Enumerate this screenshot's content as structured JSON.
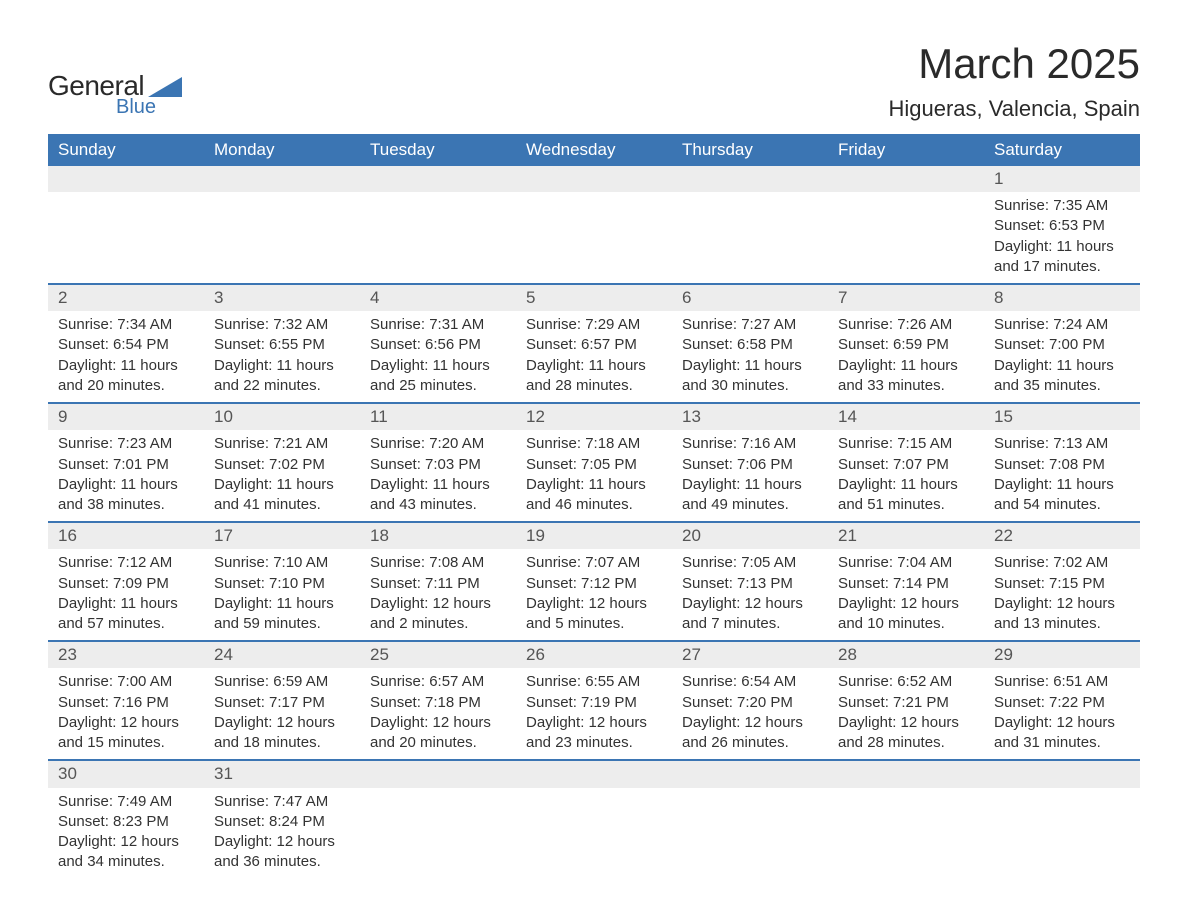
{
  "brand": {
    "name1": "General",
    "name2": "Blue",
    "logo_color": "#3b75b3",
    "text_color": "#2a2a2a"
  },
  "title": "March 2025",
  "location": "Higueras, Valencia, Spain",
  "colors": {
    "header_bg": "#3b75b3",
    "header_text": "#ffffff",
    "daynum_bg": "#ededed",
    "row_border": "#3b75b3",
    "body_text": "#333333",
    "page_bg": "#ffffff"
  },
  "typography": {
    "title_fontsize": 42,
    "location_fontsize": 22,
    "dayheader_fontsize": 17,
    "daynum_fontsize": 17,
    "cell_fontsize": 15,
    "font_family": "Arial, Helvetica, sans-serif"
  },
  "day_headers": [
    "Sunday",
    "Monday",
    "Tuesday",
    "Wednesday",
    "Thursday",
    "Friday",
    "Saturday"
  ],
  "weeks": [
    [
      {
        "day": "",
        "sunrise": "",
        "sunset": "",
        "daylight": ""
      },
      {
        "day": "",
        "sunrise": "",
        "sunset": "",
        "daylight": ""
      },
      {
        "day": "",
        "sunrise": "",
        "sunset": "",
        "daylight": ""
      },
      {
        "day": "",
        "sunrise": "",
        "sunset": "",
        "daylight": ""
      },
      {
        "day": "",
        "sunrise": "",
        "sunset": "",
        "daylight": ""
      },
      {
        "day": "",
        "sunrise": "",
        "sunset": "",
        "daylight": ""
      },
      {
        "day": "1",
        "sunrise": "Sunrise: 7:35 AM",
        "sunset": "Sunset: 6:53 PM",
        "daylight": "Daylight: 11 hours and 17 minutes."
      }
    ],
    [
      {
        "day": "2",
        "sunrise": "Sunrise: 7:34 AM",
        "sunset": "Sunset: 6:54 PM",
        "daylight": "Daylight: 11 hours and 20 minutes."
      },
      {
        "day": "3",
        "sunrise": "Sunrise: 7:32 AM",
        "sunset": "Sunset: 6:55 PM",
        "daylight": "Daylight: 11 hours and 22 minutes."
      },
      {
        "day": "4",
        "sunrise": "Sunrise: 7:31 AM",
        "sunset": "Sunset: 6:56 PM",
        "daylight": "Daylight: 11 hours and 25 minutes."
      },
      {
        "day": "5",
        "sunrise": "Sunrise: 7:29 AM",
        "sunset": "Sunset: 6:57 PM",
        "daylight": "Daylight: 11 hours and 28 minutes."
      },
      {
        "day": "6",
        "sunrise": "Sunrise: 7:27 AM",
        "sunset": "Sunset: 6:58 PM",
        "daylight": "Daylight: 11 hours and 30 minutes."
      },
      {
        "day": "7",
        "sunrise": "Sunrise: 7:26 AM",
        "sunset": "Sunset: 6:59 PM",
        "daylight": "Daylight: 11 hours and 33 minutes."
      },
      {
        "day": "8",
        "sunrise": "Sunrise: 7:24 AM",
        "sunset": "Sunset: 7:00 PM",
        "daylight": "Daylight: 11 hours and 35 minutes."
      }
    ],
    [
      {
        "day": "9",
        "sunrise": "Sunrise: 7:23 AM",
        "sunset": "Sunset: 7:01 PM",
        "daylight": "Daylight: 11 hours and 38 minutes."
      },
      {
        "day": "10",
        "sunrise": "Sunrise: 7:21 AM",
        "sunset": "Sunset: 7:02 PM",
        "daylight": "Daylight: 11 hours and 41 minutes."
      },
      {
        "day": "11",
        "sunrise": "Sunrise: 7:20 AM",
        "sunset": "Sunset: 7:03 PM",
        "daylight": "Daylight: 11 hours and 43 minutes."
      },
      {
        "day": "12",
        "sunrise": "Sunrise: 7:18 AM",
        "sunset": "Sunset: 7:05 PM",
        "daylight": "Daylight: 11 hours and 46 minutes."
      },
      {
        "day": "13",
        "sunrise": "Sunrise: 7:16 AM",
        "sunset": "Sunset: 7:06 PM",
        "daylight": "Daylight: 11 hours and 49 minutes."
      },
      {
        "day": "14",
        "sunrise": "Sunrise: 7:15 AM",
        "sunset": "Sunset: 7:07 PM",
        "daylight": "Daylight: 11 hours and 51 minutes."
      },
      {
        "day": "15",
        "sunrise": "Sunrise: 7:13 AM",
        "sunset": "Sunset: 7:08 PM",
        "daylight": "Daylight: 11 hours and 54 minutes."
      }
    ],
    [
      {
        "day": "16",
        "sunrise": "Sunrise: 7:12 AM",
        "sunset": "Sunset: 7:09 PM",
        "daylight": "Daylight: 11 hours and 57 minutes."
      },
      {
        "day": "17",
        "sunrise": "Sunrise: 7:10 AM",
        "sunset": "Sunset: 7:10 PM",
        "daylight": "Daylight: 11 hours and 59 minutes."
      },
      {
        "day": "18",
        "sunrise": "Sunrise: 7:08 AM",
        "sunset": "Sunset: 7:11 PM",
        "daylight": "Daylight: 12 hours and 2 minutes."
      },
      {
        "day": "19",
        "sunrise": "Sunrise: 7:07 AM",
        "sunset": "Sunset: 7:12 PM",
        "daylight": "Daylight: 12 hours and 5 minutes."
      },
      {
        "day": "20",
        "sunrise": "Sunrise: 7:05 AM",
        "sunset": "Sunset: 7:13 PM",
        "daylight": "Daylight: 12 hours and 7 minutes."
      },
      {
        "day": "21",
        "sunrise": "Sunrise: 7:04 AM",
        "sunset": "Sunset: 7:14 PM",
        "daylight": "Daylight: 12 hours and 10 minutes."
      },
      {
        "day": "22",
        "sunrise": "Sunrise: 7:02 AM",
        "sunset": "Sunset: 7:15 PM",
        "daylight": "Daylight: 12 hours and 13 minutes."
      }
    ],
    [
      {
        "day": "23",
        "sunrise": "Sunrise: 7:00 AM",
        "sunset": "Sunset: 7:16 PM",
        "daylight": "Daylight: 12 hours and 15 minutes."
      },
      {
        "day": "24",
        "sunrise": "Sunrise: 6:59 AM",
        "sunset": "Sunset: 7:17 PM",
        "daylight": "Daylight: 12 hours and 18 minutes."
      },
      {
        "day": "25",
        "sunrise": "Sunrise: 6:57 AM",
        "sunset": "Sunset: 7:18 PM",
        "daylight": "Daylight: 12 hours and 20 minutes."
      },
      {
        "day": "26",
        "sunrise": "Sunrise: 6:55 AM",
        "sunset": "Sunset: 7:19 PM",
        "daylight": "Daylight: 12 hours and 23 minutes."
      },
      {
        "day": "27",
        "sunrise": "Sunrise: 6:54 AM",
        "sunset": "Sunset: 7:20 PM",
        "daylight": "Daylight: 12 hours and 26 minutes."
      },
      {
        "day": "28",
        "sunrise": "Sunrise: 6:52 AM",
        "sunset": "Sunset: 7:21 PM",
        "daylight": "Daylight: 12 hours and 28 minutes."
      },
      {
        "day": "29",
        "sunrise": "Sunrise: 6:51 AM",
        "sunset": "Sunset: 7:22 PM",
        "daylight": "Daylight: 12 hours and 31 minutes."
      }
    ],
    [
      {
        "day": "30",
        "sunrise": "Sunrise: 7:49 AM",
        "sunset": "Sunset: 8:23 PM",
        "daylight": "Daylight: 12 hours and 34 minutes."
      },
      {
        "day": "31",
        "sunrise": "Sunrise: 7:47 AM",
        "sunset": "Sunset: 8:24 PM",
        "daylight": "Daylight: 12 hours and 36 minutes."
      },
      {
        "day": "",
        "sunrise": "",
        "sunset": "",
        "daylight": ""
      },
      {
        "day": "",
        "sunrise": "",
        "sunset": "",
        "daylight": ""
      },
      {
        "day": "",
        "sunrise": "",
        "sunset": "",
        "daylight": ""
      },
      {
        "day": "",
        "sunrise": "",
        "sunset": "",
        "daylight": ""
      },
      {
        "day": "",
        "sunrise": "",
        "sunset": "",
        "daylight": ""
      }
    ]
  ]
}
